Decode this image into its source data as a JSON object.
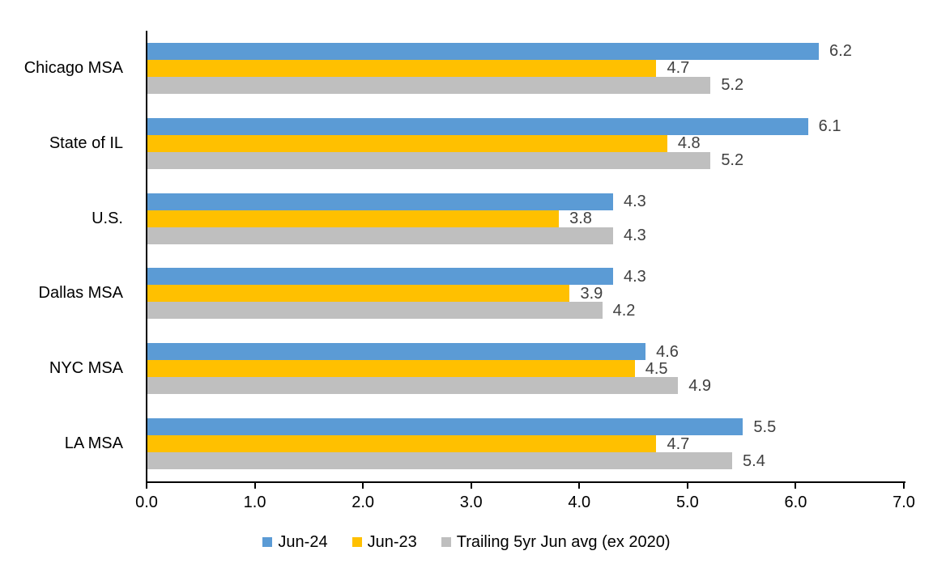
{
  "chart_data": {
    "type": "bar",
    "orientation": "horizontal",
    "title": "",
    "xlabel": "",
    "ylabel": "",
    "categories": [
      "Chicago MSA",
      "State of IL",
      "U.S.",
      "Dallas MSA",
      "NYC MSA",
      "LA MSA"
    ],
    "series": [
      {
        "name": "Jun-24",
        "color": "#5B9BD5",
        "values": [
          6.2,
          6.1,
          4.3,
          4.3,
          4.6,
          5.5
        ]
      },
      {
        "name": "Jun-23",
        "color": "#FFC000",
        "values": [
          4.7,
          4.8,
          3.8,
          3.9,
          4.5,
          4.7
        ]
      },
      {
        "name": "Trailing 5yr Jun avg (ex 2020)",
        "color": "#BFBFBF",
        "values": [
          5.2,
          5.2,
          4.3,
          4.2,
          4.9,
          5.4
        ]
      }
    ],
    "xlim": [
      0.0,
      7.0
    ],
    "x_ticks": [
      "0.0",
      "1.0",
      "2.0",
      "3.0",
      "4.0",
      "5.0",
      "6.0",
      "7.0"
    ],
    "value_labels_shown": true,
    "value_label_color": "#404040",
    "axis_color": "#000000",
    "grid": false,
    "legend_position": "bottom"
  }
}
